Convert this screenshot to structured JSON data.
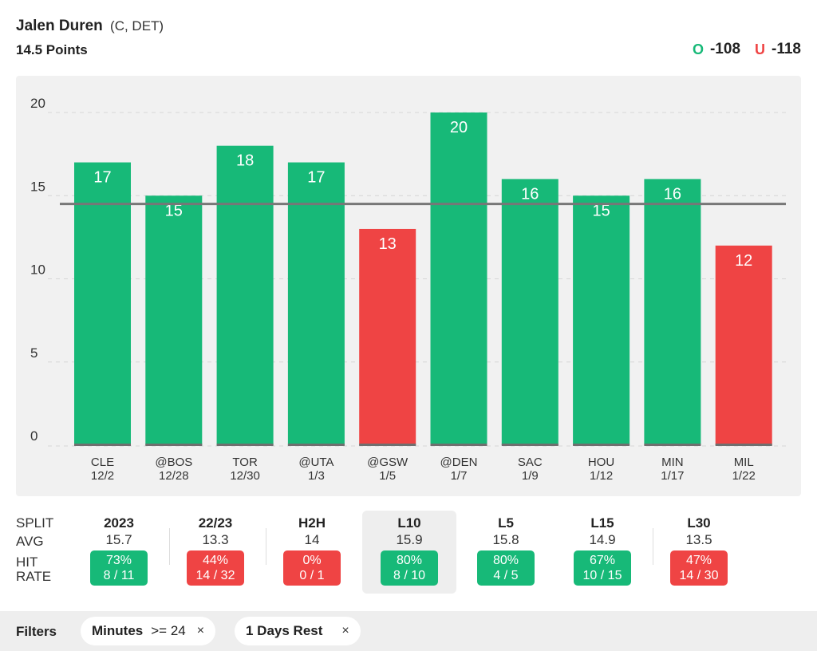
{
  "header": {
    "player_name": "Jalen Duren",
    "player_meta": "(C, DET)",
    "prop": "14.5 Points",
    "over_label": "O",
    "over_odds": "-108",
    "under_label": "U",
    "under_odds": "-118"
  },
  "colors": {
    "hit": "#17b978",
    "miss": "#ef4444",
    "line": "#777777",
    "panel": "#f1f1f1"
  },
  "chart_data": {
    "type": "bar",
    "categories": [
      "CLE",
      "@BOS",
      "TOR",
      "@UTA",
      "@GSW",
      "@DEN",
      "SAC",
      "HOU",
      "MIN",
      "MIL"
    ],
    "dates": [
      "12/2",
      "12/28",
      "12/30",
      "1/3",
      "1/5",
      "1/7",
      "1/9",
      "1/12",
      "1/17",
      "1/22"
    ],
    "values": [
      17,
      15,
      18,
      17,
      13,
      20,
      16,
      15,
      16,
      12
    ],
    "line": 14.5,
    "yticks": [
      0,
      5,
      10,
      15,
      20
    ],
    "ylim": [
      0,
      20
    ],
    "grid": true,
    "title": "",
    "xlabel": "",
    "ylabel": ""
  },
  "splits": {
    "labels": {
      "split": "SPLIT",
      "avg": "AVG",
      "hit": "HIT",
      "rate": "RATE"
    },
    "columns": [
      {
        "name": "2023",
        "avg": "15.7",
        "pct": "73%",
        "frac": "8 / 11",
        "status": "hit",
        "active": false
      },
      {
        "name": "22/23",
        "avg": "13.3",
        "pct": "44%",
        "frac": "14 / 32",
        "status": "miss",
        "active": false
      },
      {
        "name": "H2H",
        "avg": "14",
        "pct": "0%",
        "frac": "0 / 1",
        "status": "miss",
        "active": false
      },
      {
        "name": "L10",
        "avg": "15.9",
        "pct": "80%",
        "frac": "8 / 10",
        "status": "hit",
        "active": true
      },
      {
        "name": "L5",
        "avg": "15.8",
        "pct": "80%",
        "frac": "4 / 5",
        "status": "hit",
        "active": false
      },
      {
        "name": "L15",
        "avg": "14.9",
        "pct": "67%",
        "frac": "10 / 15",
        "status": "hit",
        "active": false
      },
      {
        "name": "L30",
        "avg": "13.5",
        "pct": "47%",
        "frac": "14 / 30",
        "status": "miss",
        "active": false
      }
    ]
  },
  "filters": {
    "label": "Filters",
    "chips": [
      {
        "name": "Minutes",
        "value": ">= 24",
        "remove": "×"
      },
      {
        "name": "1 Days Rest",
        "value": "",
        "remove": "×"
      }
    ]
  }
}
